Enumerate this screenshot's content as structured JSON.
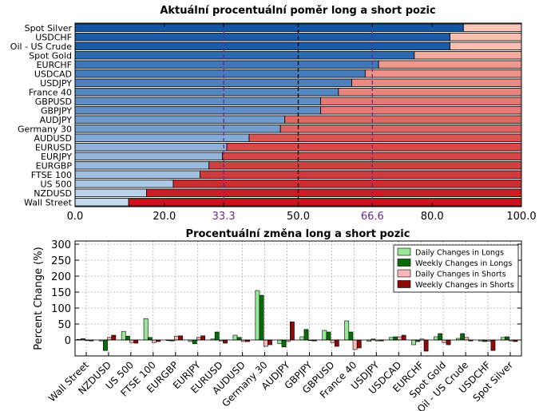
{
  "chart_data": [
    {
      "type": "bar",
      "orientation": "horizontal",
      "stacked": true,
      "title": "Aktuální procentuální poměr long a short pozic",
      "categories": [
        "Spot Silver",
        "USDCHF",
        "Oil - US Crude",
        "Spot Gold",
        "EURCHF",
        "USDCAD",
        "USDJPY",
        "France 40",
        "GBPUSD",
        "GBPJPY",
        "AUDJPY",
        "Germany 30",
        "AUDUSD",
        "EURUSD",
        "EURJPY",
        "EURGBP",
        "FTSE 100",
        "US 500",
        "NZDUSD",
        "Wall Street"
      ],
      "series": [
        {
          "role": "long",
          "values": [
            87,
            84,
            84,
            76,
            68,
            65,
            62,
            59,
            55,
            55,
            47,
            46,
            39,
            34,
            33,
            30,
            28,
            22,
            16,
            12
          ]
        },
        {
          "role": "short",
          "values": [
            13,
            16,
            16,
            24,
            32,
            35,
            38,
            41,
            45,
            45,
            53,
            54,
            61,
            66,
            67,
            70,
            72,
            78,
            84,
            88
          ]
        }
      ],
      "xlim": [
        0,
        100
      ],
      "xticks": [
        "0.0",
        "20.0",
        "33.3",
        "50.0",
        "66.6",
        "80.0",
        "100.0"
      ],
      "xtick_values": [
        0,
        20,
        33.3,
        50,
        66.6,
        80,
        100
      ],
      "highlight_ticks": [
        "33.3",
        "66.6"
      ],
      "reference_lines": [
        33.3,
        50,
        66.6
      ],
      "colors": {
        "reference": "#6b2a8c",
        "mid": "#000000",
        "highlight_tick": "#6b2a8c"
      }
    },
    {
      "type": "bar",
      "title": "Procentuální změna long a short pozic",
      "ylabel": "Percent Change (%)",
      "ylim": [
        -50,
        310
      ],
      "yticks": [
        0,
        50,
        100,
        150,
        200,
        250,
        300
      ],
      "categories": [
        "Wall Street",
        "NZDUSD",
        "US 500",
        "FTSE 100",
        "EURGBP",
        "EURJPY",
        "EURUSD",
        "AUDUSD",
        "Germany 30",
        "AUDJPY",
        "GBPJPY",
        "GBPUSD",
        "France 40",
        "USDJPY",
        "USDCAD",
        "EURCHF",
        "Spot Gold",
        "Oil - US Crude",
        "USDCHF",
        "Spot Silver"
      ],
      "legend_position": "top-right",
      "grid": true,
      "series": [
        {
          "name": "Daily Changes in Longs",
          "color": "#98e698",
          "values": [
            2,
            -3,
            27,
            67,
            -2,
            -5,
            3,
            15,
            155,
            -12,
            10,
            30,
            60,
            -4,
            8,
            -15,
            10,
            5,
            -3,
            8
          ]
        },
        {
          "name": "Weekly Changes in Longs",
          "color": "#0a6b0a",
          "values": [
            4,
            -33,
            12,
            8,
            -3,
            -12,
            25,
            8,
            140,
            -22,
            33,
            25,
            25,
            3,
            10,
            -5,
            20,
            20,
            -5,
            10
          ]
        },
        {
          "name": "Daily Changes in Shorts",
          "color": "#f8b8b8",
          "values": [
            -2,
            8,
            -8,
            -8,
            12,
            8,
            -3,
            -5,
            -20,
            -5,
            -2,
            -8,
            -30,
            -3,
            10,
            3,
            -8,
            8,
            -4,
            -3
          ]
        },
        {
          "name": "Weekly Changes in Shorts",
          "color": "#8b0a0a",
          "values": [
            -3,
            15,
            -10,
            -5,
            13,
            13,
            -10,
            -5,
            -15,
            57,
            -3,
            -20,
            -25,
            -3,
            15,
            -35,
            -15,
            -3,
            -33,
            -5
          ]
        }
      ]
    }
  ]
}
